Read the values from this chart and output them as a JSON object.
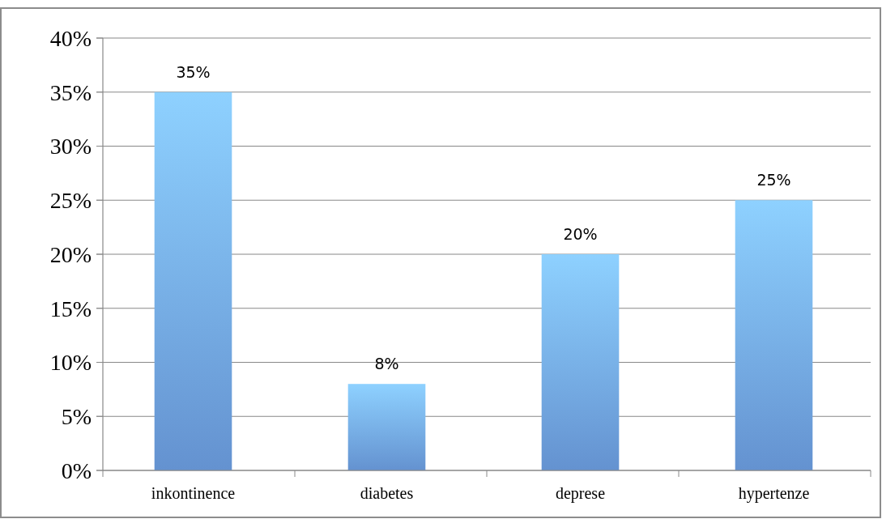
{
  "chart_data": {
    "type": "bar",
    "categories": [
      "inkontinence",
      "diabetes",
      "deprese",
      "hypertenze"
    ],
    "values": [
      35,
      8,
      20,
      25
    ],
    "color": "#6fa3e8",
    "value_labels": [
      "35%",
      "8%",
      "20%",
      "25%"
    ],
    "ylim": [
      0,
      40
    ],
    "yticks": [
      {
        "value": 0,
        "label": "0%"
      },
      {
        "value": 5,
        "label": "5%"
      },
      {
        "value": 10,
        "label": "10%"
      },
      {
        "value": 15,
        "label": "15%"
      },
      {
        "value": 20,
        "label": "20%"
      },
      {
        "value": 25,
        "label": "25%"
      },
      {
        "value": 30,
        "label": "30%"
      },
      {
        "value": 35,
        "label": "35%"
      },
      {
        "value": 40,
        "label": "40%"
      }
    ],
    "grid": "y"
  }
}
